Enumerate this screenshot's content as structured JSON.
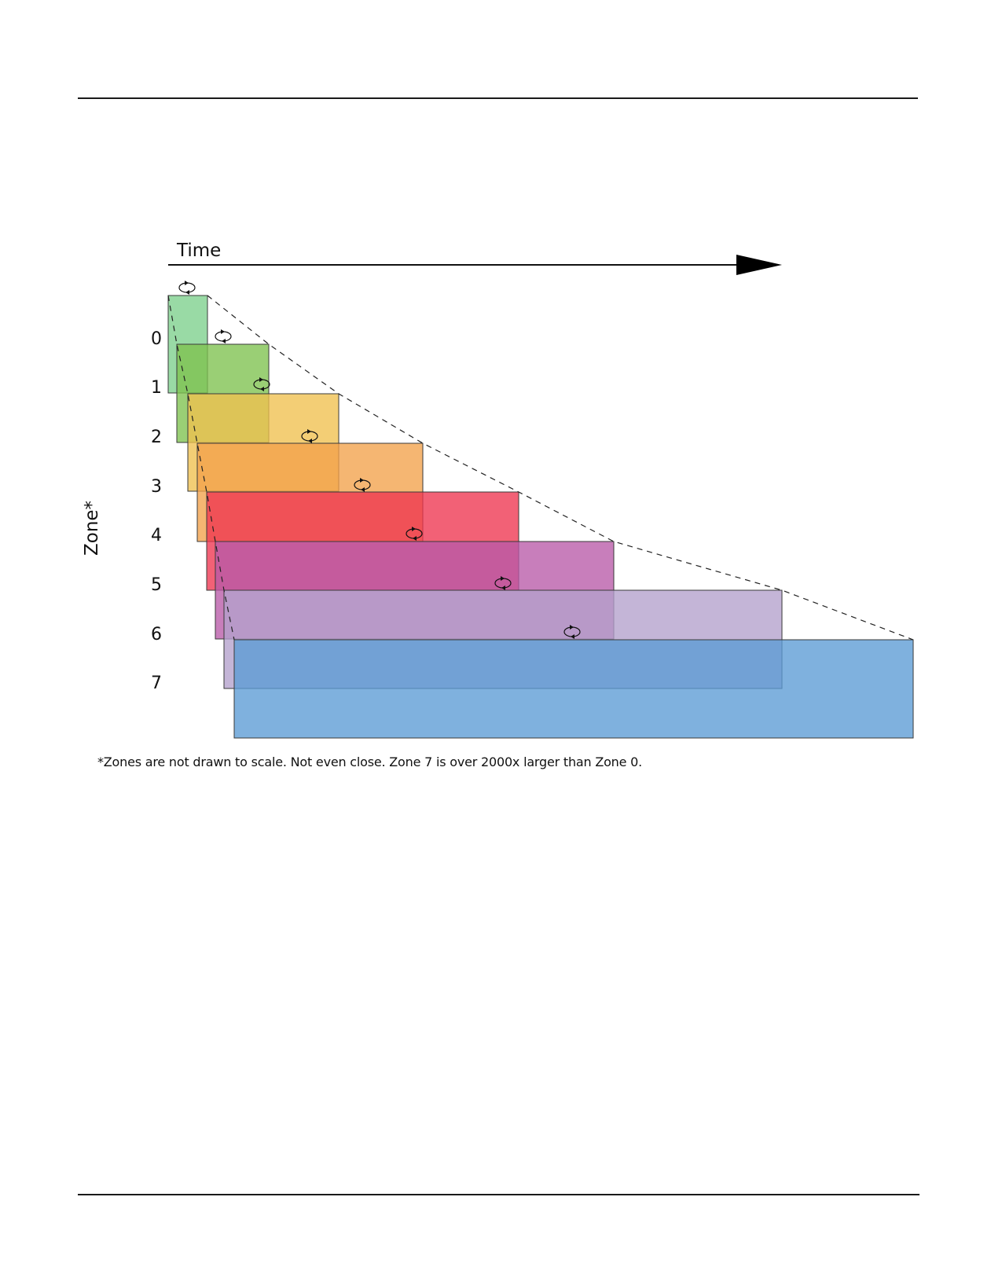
{
  "diagram": {
    "time_label": "Time",
    "zone_axis_label": "Zone*",
    "footnote": "*Zones are not drawn to scale. Not even close. Zone 7 is over 2000x larger than Zone 0.",
    "zones": [
      {
        "label": "0",
        "color": "#7ccf8c"
      },
      {
        "label": "1",
        "color": "#7dc24e"
      },
      {
        "label": "2",
        "color": "#f0c04e"
      },
      {
        "label": "3",
        "color": "#f2a24a"
      },
      {
        "label": "4",
        "color": "#ee3550"
      },
      {
        "label": "5",
        "color": "#b85aa8"
      },
      {
        "label": "6",
        "color": "#b3a0cc"
      },
      {
        "label": "7",
        "color": "#5b9bd5"
      }
    ]
  }
}
